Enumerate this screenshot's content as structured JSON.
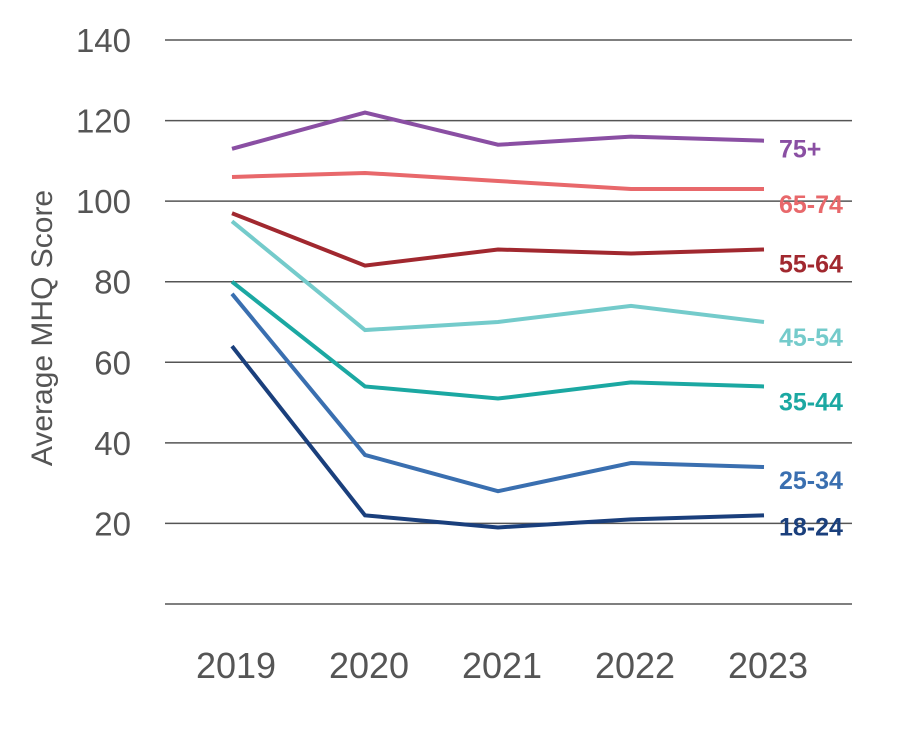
{
  "chart_data": {
    "type": "line",
    "title": "",
    "xlabel": "",
    "ylabel": "Average MHQ Score",
    "categories": [
      "2019",
      "2020",
      "2021",
      "2022",
      "2023"
    ],
    "ylim": [
      0,
      140
    ],
    "yticks": [
      20,
      40,
      60,
      80,
      100,
      120,
      140
    ],
    "ytick_labels": [
      "20",
      "40",
      "60",
      "80",
      "100",
      "120",
      "140"
    ],
    "grid": "horizontal",
    "legend": "inline labels at right end of each line",
    "series": [
      {
        "name": "75+",
        "color": "#8a4fa3",
        "values": [
          113,
          122,
          114,
          116,
          115
        ]
      },
      {
        "name": "65-74",
        "color": "#e8686b",
        "values": [
          106,
          107,
          105,
          103,
          103
        ]
      },
      {
        "name": "55-64",
        "color": "#a1282f",
        "values": [
          97,
          84,
          88,
          87,
          88
        ]
      },
      {
        "name": "45-54",
        "color": "#74cbcb",
        "values": [
          95,
          68,
          70,
          74,
          70
        ]
      },
      {
        "name": "35-44",
        "color": "#1ba8a2",
        "values": [
          80,
          54,
          51,
          55,
          54
        ]
      },
      {
        "name": "25-34",
        "color": "#3a6fb0",
        "values": [
          77,
          37,
          28,
          35,
          34
        ]
      },
      {
        "name": "18-24",
        "color": "#1a3f7c",
        "values": [
          64,
          22,
          19,
          21,
          22
        ]
      }
    ]
  }
}
